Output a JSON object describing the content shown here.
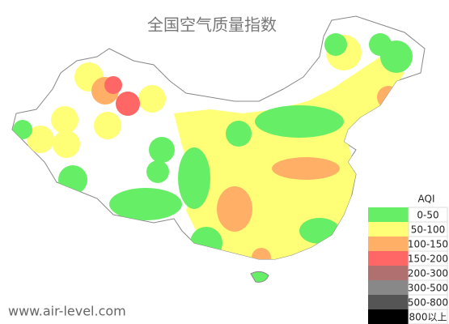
{
  "title": "全国空气质量指数",
  "legend": {
    "title": "AQI",
    "items": [
      {
        "label": "0-50",
        "color": "#66ee66"
      },
      {
        "label": "50-100",
        "color": "#ffff77"
      },
      {
        "label": "100-150",
        "color": "#ffb066"
      },
      {
        "label": "150-200",
        "color": "#ff6666"
      },
      {
        "label": "200-300",
        "color": "#b07070"
      },
      {
        "label": "300-500",
        "color": "#888888"
      },
      {
        "label": "500-800",
        "color": "#555555"
      },
      {
        "label": "800以上",
        "color": "#000000"
      }
    ]
  },
  "watermark": "www.air-level.com"
}
